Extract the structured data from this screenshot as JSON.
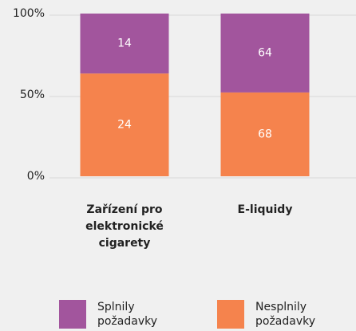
{
  "chart_data": {
    "type": "bar",
    "stacked": "percent",
    "categories": [
      "Zařízení pro elektronické cigarety",
      "E-liquidy"
    ],
    "series": [
      {
        "name": "Splnily požadavky",
        "color": "#a2559d",
        "values": [
          14,
          64
        ]
      },
      {
        "name": "Nesplnily požadavky",
        "color": "#f5834d",
        "values": [
          24,
          68
        ]
      }
    ],
    "ylim": [
      0,
      100
    ],
    "yticks": [
      {
        "value": 0,
        "label": "0%"
      },
      {
        "value": 50,
        "label": "50%"
      },
      {
        "value": 100,
        "label": "100%"
      }
    ],
    "grid": true,
    "legend": "bottom"
  }
}
